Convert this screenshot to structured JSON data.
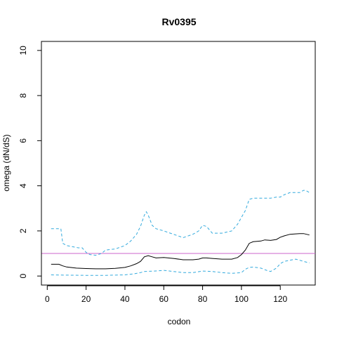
{
  "chart_data": {
    "type": "line",
    "title": "Rv0395",
    "xlabel": "codon",
    "ylabel": "omega (dN/dS)",
    "xlim": [
      -3,
      138
    ],
    "ylim": [
      -0.4,
      10.4
    ],
    "x_ticks": [
      0,
      20,
      40,
      60,
      80,
      100,
      120
    ],
    "y_ticks": [
      0,
      2,
      4,
      6,
      8,
      10
    ],
    "reference_line": {
      "y": 1,
      "color": "#cc66cc"
    },
    "grid": false,
    "series": [
      {
        "role": "estimate",
        "color": "#000000",
        "dash": "solid",
        "x": [
          2,
          6,
          8,
          10,
          15,
          20,
          25,
          30,
          35,
          40,
          43,
          46,
          48,
          50,
          52,
          54,
          56,
          60,
          65,
          70,
          75,
          78,
          80,
          82,
          85,
          90,
          95,
          98,
          100,
          102,
          104,
          106,
          110,
          112,
          115,
          118,
          120,
          122,
          125,
          128,
          130,
          132,
          135
        ],
        "y": [
          0.52,
          0.52,
          0.45,
          0.4,
          0.35,
          0.33,
          0.32,
          0.32,
          0.34,
          0.38,
          0.45,
          0.55,
          0.65,
          0.85,
          0.9,
          0.85,
          0.8,
          0.82,
          0.78,
          0.72,
          0.72,
          0.75,
          0.8,
          0.8,
          0.78,
          0.75,
          0.75,
          0.82,
          0.95,
          1.15,
          1.45,
          1.52,
          1.55,
          1.6,
          1.58,
          1.62,
          1.72,
          1.78,
          1.85,
          1.87,
          1.88,
          1.88,
          1.82
        ]
      },
      {
        "role": "upper-bound",
        "color": "#33aadd",
        "dash": "dashed",
        "x": [
          2,
          7,
          8,
          10,
          13,
          16,
          18,
          20,
          22,
          25,
          28,
          30,
          35,
          40,
          43,
          46,
          48,
          50,
          51,
          52,
          54,
          56,
          60,
          65,
          70,
          75,
          78,
          80,
          82,
          85,
          90,
          95,
          98,
          100,
          102,
          104,
          106,
          110,
          115,
          118,
          120,
          122,
          125,
          128,
          130,
          132,
          133,
          135
        ],
        "y": [
          2.1,
          2.1,
          1.45,
          1.35,
          1.3,
          1.25,
          1.25,
          1.05,
          0.95,
          0.92,
          1.0,
          1.15,
          1.2,
          1.35,
          1.55,
          1.85,
          2.2,
          2.7,
          2.85,
          2.7,
          2.25,
          2.1,
          2.0,
          1.85,
          1.7,
          1.85,
          2.0,
          2.25,
          2.2,
          1.9,
          1.9,
          2.0,
          2.3,
          2.6,
          2.9,
          3.4,
          3.45,
          3.45,
          3.45,
          3.5,
          3.5,
          3.6,
          3.7,
          3.7,
          3.7,
          3.8,
          3.8,
          3.7
        ]
      },
      {
        "role": "lower-bound",
        "color": "#33aadd",
        "dash": "dashed",
        "x": [
          2,
          10,
          20,
          30,
          40,
          45,
          48,
          50,
          55,
          60,
          65,
          70,
          75,
          80,
          85,
          90,
          95,
          100,
          102,
          104,
          106,
          110,
          113,
          115,
          118,
          120,
          122,
          125,
          128,
          130,
          132,
          135
        ],
        "y": [
          0.05,
          0.04,
          0.03,
          0.03,
          0.05,
          0.1,
          0.15,
          0.2,
          0.22,
          0.25,
          0.2,
          0.15,
          0.15,
          0.22,
          0.2,
          0.15,
          0.12,
          0.15,
          0.3,
          0.38,
          0.4,
          0.35,
          0.25,
          0.2,
          0.35,
          0.55,
          0.65,
          0.7,
          0.75,
          0.7,
          0.65,
          0.58
        ]
      }
    ]
  }
}
